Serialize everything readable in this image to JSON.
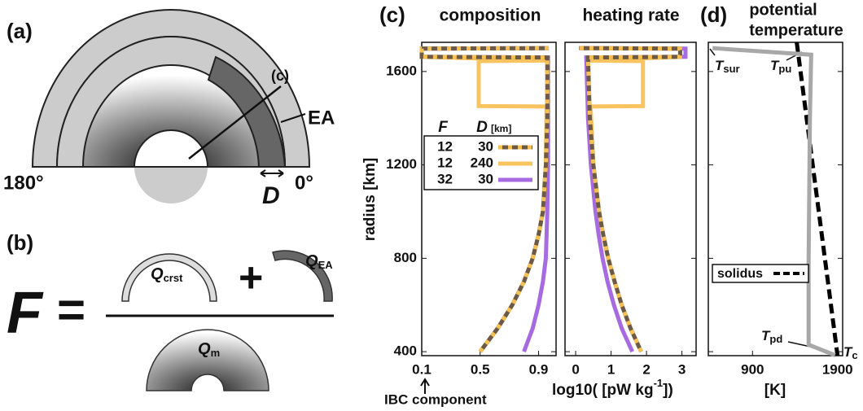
{
  "diagram": {
    "a": {
      "panel": "(a)",
      "pointer": "(c)",
      "layer": "EA",
      "left": "180°",
      "right": "0°",
      "width": "D"
    },
    "b": {
      "panel": "(b)",
      "lhs": "F",
      "equals": "=",
      "plus": "+",
      "q_crust": {
        "symbol": "Q",
        "subscript": "crst"
      },
      "q_ea": {
        "symbol": "Q",
        "subscript": "EA"
      },
      "q_mantle": {
        "symbol": "Q",
        "subscript": "m"
      }
    }
  },
  "chart_data": [
    {
      "type": "line",
      "panel": "(c)",
      "title": "composition",
      "y_label": "radius [km]",
      "x_label": "IBC component",
      "legend": {
        "headers": [
          "F",
          "D"
        ],
        "unit": "[km]"
      },
      "xlim": [
        0.1,
        1.02
      ],
      "xticks": [
        0.1,
        0.5,
        0.9
      ],
      "ylim": [
        383,
        1725
      ],
      "yticks": [
        400,
        800,
        1200,
        1600
      ],
      "series": [
        {
          "F": 12,
          "D": 30,
          "color": "#6b5a48",
          "dash_color": "#f5c054",
          "x": [
            0.5,
            0.62,
            0.72,
            0.8,
            0.86,
            0.9,
            0.93,
            0.95,
            0.96,
            0.96,
            0.1,
            0.1,
            0.97
          ],
          "y": [
            400,
            500,
            600,
            700,
            800,
            900,
            1000,
            1200,
            1400,
            1660,
            1663,
            1698,
            1700
          ]
        },
        {
          "F": 12,
          "D": 240,
          "color": "#f9c35f",
          "x": [
            0.5,
            0.62,
            0.72,
            0.8,
            0.86,
            0.9,
            0.93,
            0.95,
            0.955,
            0.49,
            0.49,
            0.96,
            0.1,
            0.1,
            0.97
          ],
          "y": [
            400,
            500,
            600,
            700,
            800,
            900,
            1000,
            1200,
            1450,
            1452,
            1645,
            1647,
            1663,
            1698,
            1700
          ]
        },
        {
          "F": 32,
          "D": 30,
          "color": "#a66be0",
          "x": [
            0.8,
            0.86,
            0.9,
            0.93,
            0.95,
            0.96,
            0.965,
            0.965,
            0.1,
            0.1,
            0.97
          ],
          "y": [
            400,
            500,
            600,
            700,
            800,
            1000,
            1200,
            1660,
            1663,
            1698,
            1700
          ]
        }
      ]
    },
    {
      "type": "line",
      "title": "heating rate",
      "x_label": {
        "text": "log10( [pW kg",
        "superscript": "-1",
        "suffix": "])"
      },
      "xlim": [
        -0.3,
        3.4
      ],
      "xticks": [
        0,
        1,
        2,
        3
      ],
      "ylim": [
        383,
        1725
      ],
      "yticks": [
        400,
        800,
        1200,
        1600
      ],
      "series": [
        {
          "color": "#6b5a48",
          "dash_color": "#f5c054",
          "x": [
            1.85,
            1.55,
            1.3,
            1.1,
            0.92,
            0.78,
            0.66,
            0.5,
            0.4,
            0.35,
            2.95,
            2.95,
            0.1
          ],
          "y": [
            400,
            500,
            600,
            700,
            800,
            900,
            1000,
            1200,
            1400,
            1660,
            1663,
            1698,
            1700
          ]
        },
        {
          "color": "#f9c35f",
          "x": [
            1.85,
            1.55,
            1.3,
            1.1,
            0.92,
            0.78,
            0.66,
            0.5,
            0.42,
            1.9,
            1.9,
            0.35,
            2.95,
            2.95,
            0.1
          ],
          "y": [
            400,
            500,
            600,
            700,
            800,
            900,
            1000,
            1200,
            1450,
            1452,
            1645,
            1647,
            1663,
            1698,
            1700
          ]
        },
        {
          "color": "#a66be0",
          "x": [
            1.6,
            1.3,
            1.08,
            0.9,
            0.76,
            0.65,
            0.56,
            0.43,
            0.35,
            0.3,
            3.1,
            3.1,
            0.1
          ],
          "y": [
            400,
            500,
            600,
            700,
            800,
            900,
            1000,
            1200,
            1400,
            1660,
            1663,
            1698,
            1700
          ]
        }
      ]
    },
    {
      "type": "line",
      "panel": "(d)",
      "title": [
        "potential",
        "temperature"
      ],
      "x_label": "[K]",
      "xlim": [
        380,
        1960
      ],
      "xticks": [
        900,
        1900
      ],
      "ylim": [
        383,
        1725
      ],
      "yticks": [
        400,
        800,
        1200,
        1600
      ],
      "annotations": [
        {
          "symbol": "T",
          "subscript": "sur"
        },
        {
          "symbol": "T",
          "subscript": "pu"
        },
        {
          "symbol": "T",
          "subscript": "pd"
        },
        {
          "symbol": "T",
          "subscript": "c"
        }
      ],
      "series": [
        {
          "color": "#a8a8a8",
          "x": [
            430,
            1590,
            1575,
            1565,
            1560,
            1560,
            1870
          ],
          "y": [
            1700,
            1672,
            1400,
            1000,
            800,
            430,
            385
          ]
        },
        {
          "name": "solidus",
          "color": "#000000",
          "dashed": true,
          "x": [
            1420,
            1900
          ],
          "y": [
            1725,
            383
          ]
        }
      ]
    }
  ]
}
